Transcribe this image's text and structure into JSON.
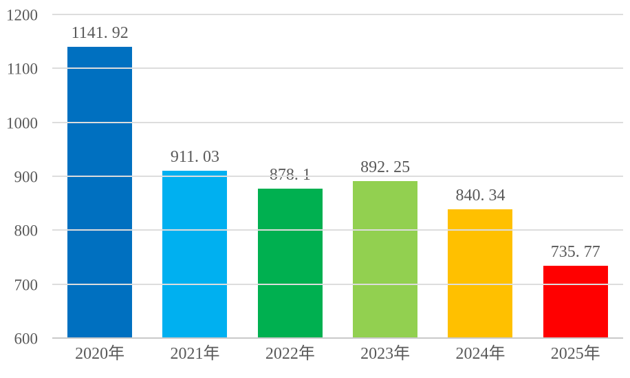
{
  "chart_data": {
    "type": "bar",
    "categories": [
      "2020年",
      "2021年",
      "2022年",
      "2023年",
      "2024年",
      "2025年"
    ],
    "values": [
      1141.92,
      911.03,
      878.1,
      892.25,
      840.34,
      735.77
    ],
    "value_labels": [
      "1141. 92",
      "911. 03",
      "878. 1",
      "892. 25",
      "840. 34",
      "735. 77"
    ],
    "bar_colors": [
      "#0070C0",
      "#00B0F0",
      "#00B050",
      "#92D050",
      "#FFC000",
      "#FF0000"
    ],
    "title": "",
    "xlabel": "",
    "ylabel": "",
    "ylim": [
      600,
      1200
    ],
    "yticks": [
      600,
      700,
      800,
      900,
      1000,
      1100,
      1200
    ],
    "grid": true,
    "legend": false,
    "colors": {
      "text": "#595959",
      "gridline": "#DDDDDD",
      "axis_line": "#C9C9C9",
      "background": "#FFFFFF"
    }
  }
}
